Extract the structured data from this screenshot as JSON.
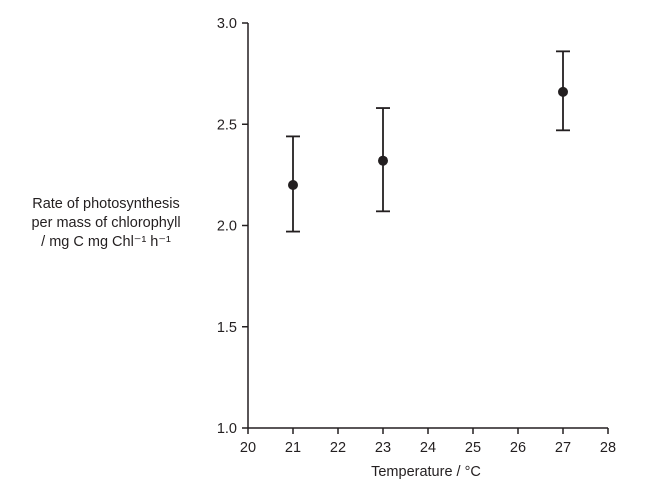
{
  "chart_data": {
    "type": "scatter",
    "title": "",
    "xlabel": "Temperature / °C",
    "ylabel": {
      "line1": "Rate of photosynthesis",
      "line2": "per mass of chlorophyll",
      "line3": "/ mg C mg Chl⁻¹ h⁻¹"
    },
    "xlim": [
      20,
      28
    ],
    "ylim": [
      1.0,
      3.0
    ],
    "x_ticks": [
      "20",
      "21",
      "22",
      "23",
      "24",
      "25",
      "26",
      "27",
      "28"
    ],
    "y_ticks": [
      "1.0",
      "1.5",
      "2.0",
      "2.5",
      "3.0"
    ],
    "grid": false,
    "legend": "none",
    "points": [
      {
        "x": 21,
        "y": 2.2,
        "err_low": 1.97,
        "err_high": 2.44
      },
      {
        "x": 23,
        "y": 2.32,
        "err_low": 2.07,
        "err_high": 2.58
      },
      {
        "x": 27,
        "y": 2.66,
        "err_low": 2.47,
        "err_high": 2.86
      }
    ],
    "marker_color": "#231f20"
  }
}
